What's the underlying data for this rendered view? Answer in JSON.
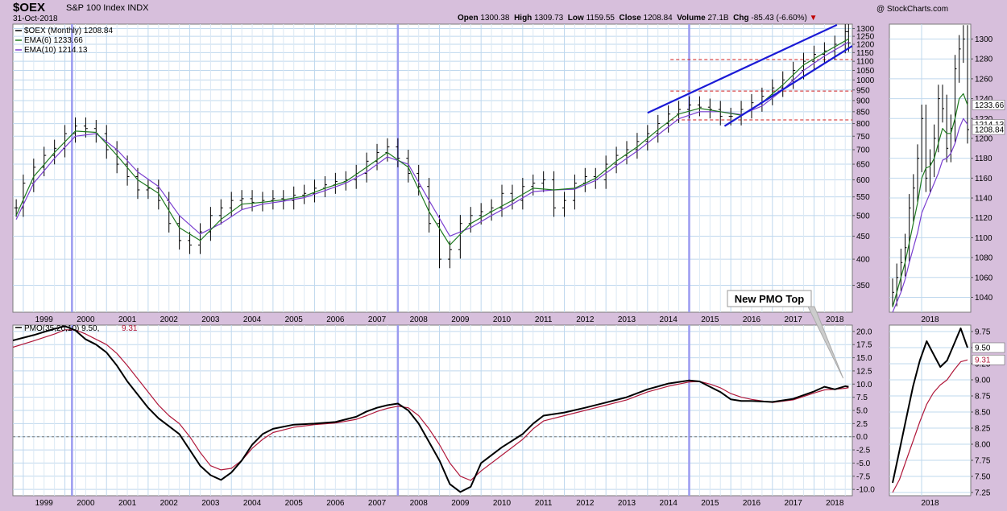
{
  "header": {
    "symbol": "$OEX",
    "name": "S&P 100 Index INDX",
    "date": "31-Oct-2018",
    "credit": "@ StockCharts.com",
    "open_label": "Open",
    "open": "1300.38",
    "high_label": "High",
    "high": "1309.73",
    "low_label": "Low",
    "low": "1159.55",
    "close_label": "Close",
    "close": "1208.84",
    "volume_label": "Volume",
    "volume": "27.1B",
    "chg_label": "Chg",
    "chg": "-85.43 (-6.60%)"
  },
  "colors": {
    "price": "#000000",
    "ema6": "#1f7a1f",
    "ema10": "#7a3fd0",
    "pmo": "#000000",
    "signal": "#b0183a",
    "channel": "#1a1ad6",
    "level": "#d21f1f",
    "vline": "#9b9bf0",
    "grid": "#bfd8ee",
    "background": "#d7bfdc"
  },
  "chart_data": [
    {
      "type": "line",
      "panel": "price-main",
      "scale": "log",
      "ylim": [
        305,
        1330
      ],
      "xlim": [
        1998.75,
        2018.92
      ],
      "x_ticks": [
        "1999",
        "2000",
        "2001",
        "2002",
        "2003",
        "2004",
        "2005",
        "2006",
        "2007",
        "2008",
        "2009",
        "2010",
        "2011",
        "2012",
        "2013",
        "2014",
        "2015",
        "2016",
        "2017",
        "2018"
      ],
      "y_ticks": [
        350,
        400,
        450,
        500,
        550,
        600,
        650,
        700,
        750,
        800,
        850,
        900,
        950,
        1000,
        1050,
        1100,
        1150,
        1200,
        1250,
        1300
      ],
      "legend": [
        {
          "text": "$OEX (Monthly) 1208.84",
          "color": "#000000"
        },
        {
          "text": "EMA(6) 1233.66",
          "color": "#1f7a1f"
        },
        {
          "text": "EMA(10) 1214.13",
          "color": "#7a3fd0"
        }
      ],
      "series": [
        {
          "name": "$OEX (Monthly)",
          "x": [
            1998.83,
            1999.0,
            1999.25,
            1999.5,
            1999.75,
            2000.0,
            2000.25,
            2000.5,
            2000.75,
            2001.0,
            2001.25,
            2001.5,
            2001.75,
            2002.0,
            2002.25,
            2002.5,
            2002.75,
            2003.0,
            2003.25,
            2003.5,
            2003.75,
            2004.0,
            2004.25,
            2004.5,
            2004.75,
            2005.0,
            2005.25,
            2005.5,
            2005.75,
            2006.0,
            2006.25,
            2006.5,
            2006.75,
            2007.0,
            2007.25,
            2007.5,
            2007.75,
            2008.0,
            2008.25,
            2008.5,
            2008.75,
            2009.0,
            2009.25,
            2009.5,
            2009.75,
            2010.0,
            2010.25,
            2010.5,
            2010.75,
            2011.0,
            2011.25,
            2011.5,
            2011.75,
            2012.0,
            2012.25,
            2012.5,
            2012.75,
            2013.0,
            2013.25,
            2013.5,
            2013.75,
            2014.0,
            2014.25,
            2014.5,
            2014.75,
            2015.0,
            2015.25,
            2015.5,
            2015.75,
            2016.0,
            2016.25,
            2016.5,
            2016.75,
            2017.0,
            2017.25,
            2017.5,
            2017.75,
            2018.0,
            2018.25,
            2018.5,
            2018.75,
            2018.83
          ],
          "values": [
            520,
            590,
            640,
            680,
            705,
            760,
            790,
            780,
            760,
            700,
            650,
            610,
            570,
            575,
            540,
            480,
            440,
            430,
            460,
            500,
            520,
            540,
            545,
            535,
            540,
            545,
            540,
            555,
            560,
            575,
            585,
            595,
            600,
            620,
            660,
            690,
            710,
            670,
            620,
            580,
            480,
            400,
            420,
            480,
            500,
            510,
            520,
            560,
            540,
            580,
            590,
            600,
            520,
            540,
            590,
            610,
            600,
            650,
            680,
            700,
            730,
            760,
            800,
            840,
            860,
            880,
            870,
            860,
            830,
            830,
            860,
            890,
            920,
            960,
            1000,
            1050,
            1100,
            1140,
            1160,
            1200,
            1280,
            1208.84
          ]
        },
        {
          "name": "EMA(6)",
          "x": [
            1998.83,
            1999.25,
            1999.75,
            2000.25,
            2000.75,
            2001.25,
            2001.75,
            2002.25,
            2002.75,
            2003.25,
            2003.75,
            2004.25,
            2004.75,
            2005.25,
            2005.75,
            2006.25,
            2006.75,
            2007.25,
            2007.75,
            2008.25,
            2008.75,
            2009.25,
            2009.75,
            2010.25,
            2010.75,
            2011.25,
            2011.75,
            2012.25,
            2012.75,
            2013.25,
            2013.75,
            2014.25,
            2014.75,
            2015.25,
            2015.75,
            2016.25,
            2016.75,
            2017.25,
            2017.75,
            2018.25,
            2018.83
          ],
          "values": [
            500,
            610,
            690,
            770,
            765,
            680,
            600,
            560,
            470,
            440,
            490,
            530,
            535,
            542,
            552,
            575,
            595,
            640,
            690,
            640,
            510,
            430,
            480,
            510,
            540,
            575,
            570,
            575,
            605,
            660,
            710,
            775,
            840,
            865,
            850,
            835,
            890,
            975,
            1080,
            1150,
            1233.66
          ]
        },
        {
          "name": "EMA(10)",
          "x": [
            1998.83,
            1999.25,
            1999.75,
            2000.25,
            2000.75,
            2001.25,
            2001.75,
            2002.25,
            2002.75,
            2003.25,
            2003.75,
            2004.25,
            2004.75,
            2005.25,
            2005.75,
            2006.25,
            2006.75,
            2007.25,
            2007.75,
            2008.25,
            2008.75,
            2009.25,
            2009.75,
            2010.25,
            2010.75,
            2011.25,
            2011.75,
            2012.25,
            2012.75,
            2013.25,
            2013.75,
            2014.25,
            2014.75,
            2015.25,
            2015.75,
            2016.25,
            2016.75,
            2017.25,
            2017.75,
            2018.25,
            2018.83
          ],
          "values": [
            490,
            590,
            670,
            750,
            760,
            700,
            625,
            580,
            500,
            455,
            480,
            515,
            530,
            538,
            548,
            568,
            590,
            625,
            675,
            650,
            540,
            450,
            470,
            500,
            530,
            565,
            570,
            572,
            598,
            645,
            695,
            755,
            820,
            850,
            850,
            838,
            875,
            950,
            1050,
            1130,
            1214.13
          ]
        }
      ],
      "levels": [
        815,
        945,
        1110
      ],
      "channel_lines": [
        {
          "x": [
            2014.0,
            2018.55
          ],
          "y": [
            845,
            1325
          ]
        },
        {
          "x": [
            2015.85,
            2018.92
          ],
          "y": [
            790,
            1190
          ]
        }
      ],
      "vertical_markers": [
        2000.17,
        2008.0,
        2015.0
      ]
    },
    {
      "type": "line",
      "panel": "price-inset",
      "ylim": [
        1025,
        1315
      ],
      "x_ticks": [
        "2018"
      ],
      "y_ticks": [
        1040,
        1060,
        1080,
        1100,
        1120,
        1140,
        1160,
        1180,
        1200,
        1220,
        1240,
        1260,
        1280,
        1300
      ],
      "value_tags": [
        "1233.66",
        "1214.13",
        "1208.84"
      ],
      "series": [
        {
          "name": "$OEX (Monthly)",
          "values": [
            1045,
            1060,
            1075,
            1090,
            1130,
            1150,
            1180,
            1220,
            1160,
            1175,
            1200,
            1240,
            1230,
            1190,
            1210,
            1270,
            1290,
            1300,
            1208.84
          ]
        },
        {
          "name": "EMA(6)",
          "values": [
            1030,
            1045,
            1060,
            1075,
            1095,
            1115,
            1135,
            1160,
            1170,
            1172,
            1180,
            1195,
            1210,
            1205,
            1205,
            1220,
            1240,
            1245,
            1233.66
          ]
        },
        {
          "name": "EMA(10)",
          "values": [
            1025,
            1035,
            1045,
            1058,
            1075,
            1090,
            1105,
            1125,
            1135,
            1145,
            1155,
            1165,
            1178,
            1180,
            1185,
            1195,
            1210,
            1220,
            1214.13
          ]
        }
      ]
    },
    {
      "type": "line",
      "panel": "pmo-main",
      "ylim": [
        -11.2,
        21.2
      ],
      "xlim": [
        1998.75,
        2018.92
      ],
      "x_ticks": [
        "1999",
        "2000",
        "2001",
        "2002",
        "2003",
        "2004",
        "2005",
        "2006",
        "2007",
        "2008",
        "2009",
        "2010",
        "2011",
        "2012",
        "2013",
        "2014",
        "2015",
        "2016",
        "2017",
        "2018"
      ],
      "y_ticks": [
        -10.0,
        -7.5,
        -5.0,
        -2.5,
        0.0,
        2.5,
        5.0,
        7.5,
        10.0,
        12.5,
        15.0,
        17.5,
        20.0
      ],
      "legend": [
        {
          "text": "PMO(35,20,10) 9.50,",
          "color": "#000000"
        },
        {
          "text": "9.31",
          "color": "#b0183a"
        }
      ],
      "zero_line": 0,
      "annotation": {
        "text": "New PMO Top",
        "x": 2018.7,
        "y": 9.5
      },
      "series": [
        {
          "name": "PMO(35,20,10)",
          "x": [
            1998.75,
            1999.25,
            1999.75,
            2000.0,
            2000.25,
            2000.5,
            2000.75,
            2001.0,
            2001.25,
            2001.5,
            2001.75,
            2002.0,
            2002.25,
            2002.5,
            2002.75,
            2003.0,
            2003.25,
            2003.5,
            2003.75,
            2004.0,
            2004.25,
            2004.5,
            2004.75,
            2005.0,
            2005.5,
            2006.0,
            2006.5,
            2007.0,
            2007.25,
            2007.5,
            2007.75,
            2008.0,
            2008.25,
            2008.5,
            2008.75,
            2009.0,
            2009.25,
            2009.5,
            2009.75,
            2010.0,
            2010.5,
            2011.0,
            2011.25,
            2011.5,
            2012.0,
            2012.5,
            2013.0,
            2013.5,
            2014.0,
            2014.5,
            2015.0,
            2015.25,
            2015.5,
            2015.75,
            2016.0,
            2016.25,
            2016.5,
            2016.75,
            2017.0,
            2017.5,
            2018.0,
            2018.25,
            2018.5,
            2018.75,
            2018.83
          ],
          "values": [
            18.3,
            19.3,
            20.5,
            21.0,
            20.2,
            18.5,
            17.5,
            16.0,
            13.5,
            10.5,
            8.0,
            5.5,
            3.5,
            2.0,
            0.5,
            -2.5,
            -5.5,
            -7.3,
            -8.2,
            -6.8,
            -4.5,
            -1.5,
            0.5,
            1.5,
            2.3,
            2.5,
            2.8,
            3.8,
            4.8,
            5.5,
            6.0,
            6.3,
            5.0,
            2.5,
            -1.0,
            -4.5,
            -9.0,
            -10.5,
            -9.5,
            -5.0,
            -2.0,
            0.5,
            2.5,
            4.0,
            4.6,
            5.5,
            6.5,
            7.5,
            9.0,
            10.1,
            10.7,
            10.5,
            9.5,
            8.5,
            7.1,
            6.8,
            6.8,
            6.7,
            6.6,
            7.2,
            8.6,
            9.5,
            9.0,
            9.6,
            9.5
          ]
        },
        {
          "name": "Signal",
          "x": [
            1998.75,
            1999.25,
            1999.75,
            2000.0,
            2000.25,
            2000.5,
            2000.75,
            2001.0,
            2001.25,
            2001.5,
            2001.75,
            2002.0,
            2002.25,
            2002.5,
            2002.75,
            2003.0,
            2003.25,
            2003.5,
            2003.75,
            2004.0,
            2004.25,
            2004.5,
            2004.75,
            2005.0,
            2005.5,
            2006.0,
            2006.5,
            2007.0,
            2007.25,
            2007.5,
            2007.75,
            2008.0,
            2008.25,
            2008.5,
            2008.75,
            2009.0,
            2009.25,
            2009.5,
            2009.75,
            2010.0,
            2010.5,
            2011.0,
            2011.25,
            2011.5,
            2012.0,
            2012.5,
            2013.0,
            2013.5,
            2014.0,
            2014.5,
            2015.0,
            2015.25,
            2015.5,
            2015.75,
            2016.0,
            2016.25,
            2016.5,
            2016.75,
            2017.0,
            2017.5,
            2018.0,
            2018.25,
            2018.5,
            2018.75,
            2018.83
          ],
          "values": [
            17.0,
            18.2,
            19.5,
            20.3,
            20.3,
            19.5,
            18.5,
            17.5,
            15.8,
            13.5,
            11.0,
            8.5,
            6.0,
            4.0,
            2.5,
            0.0,
            -3.0,
            -5.5,
            -6.3,
            -6.0,
            -4.5,
            -2.2,
            -0.5,
            0.8,
            1.8,
            2.3,
            2.6,
            3.3,
            4.0,
            4.8,
            5.4,
            5.8,
            5.5,
            4.0,
            1.5,
            -1.5,
            -5.0,
            -7.5,
            -8.3,
            -6.5,
            -3.5,
            -0.5,
            1.5,
            3.0,
            4.0,
            5.0,
            6.0,
            7.0,
            8.5,
            9.6,
            10.4,
            10.5,
            10.0,
            9.3,
            8.2,
            7.5,
            7.1,
            6.8,
            6.5,
            7.0,
            8.3,
            8.9,
            9.0,
            9.2,
            9.31
          ]
        }
      ]
    },
    {
      "type": "line",
      "panel": "pmo-inset",
      "ylim": [
        7.2,
        9.85
      ],
      "x_ticks": [
        "2018"
      ],
      "y_ticks": [
        7.25,
        7.5,
        7.75,
        8.0,
        8.25,
        8.5,
        8.75,
        9.0,
        9.25,
        9.5,
        9.75
      ],
      "value_tags": [
        "9.50",
        "9.31"
      ],
      "series": [
        {
          "name": "PMO(35,20,10)",
          "values": [
            7.4,
            7.9,
            8.4,
            8.9,
            9.3,
            9.6,
            9.4,
            9.2,
            9.3,
            9.55,
            9.8,
            9.5
          ]
        },
        {
          "name": "Signal",
          "values": [
            7.25,
            7.45,
            7.75,
            8.05,
            8.35,
            8.62,
            8.8,
            8.92,
            9.0,
            9.15,
            9.28,
            9.31
          ]
        }
      ]
    }
  ]
}
